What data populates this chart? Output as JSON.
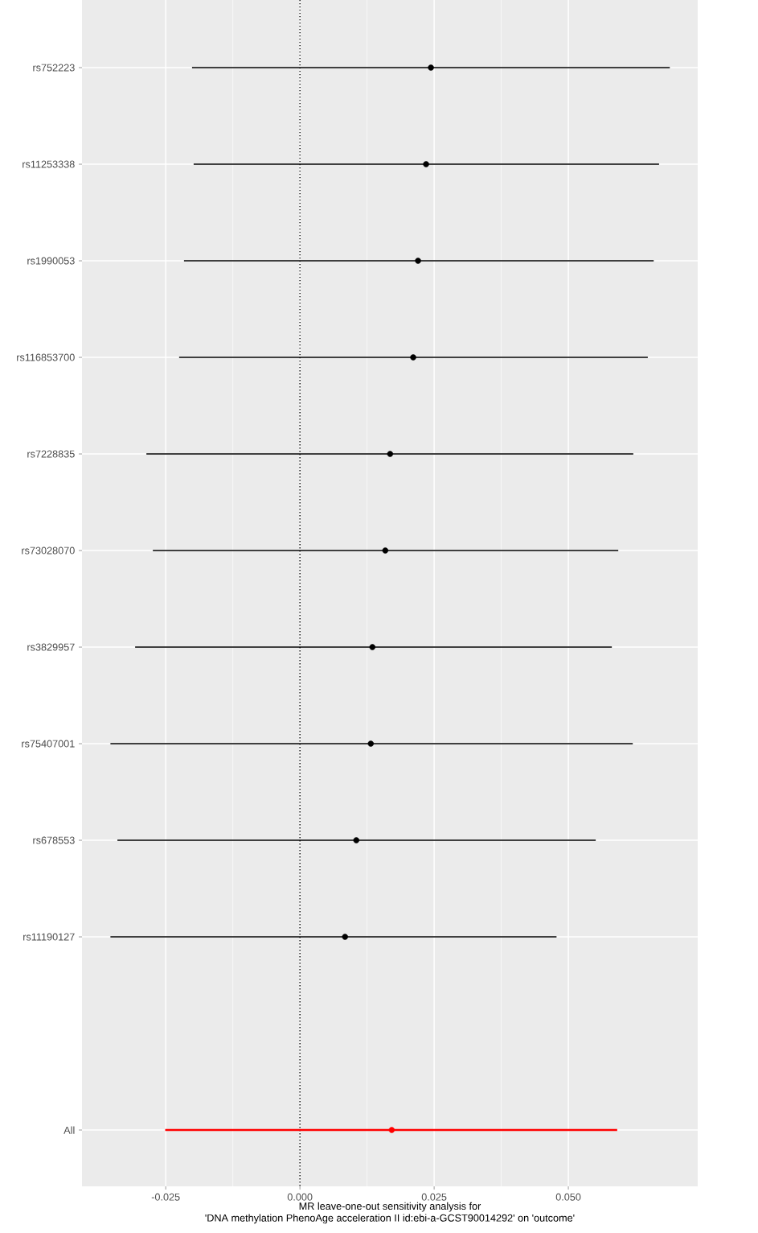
{
  "chart_data": {
    "type": "scatter",
    "orientation": "horizontal",
    "xlabel": "MR leave-one-out sensitivity analysis for\n'DNA methylation PhenoAge acceleration II id:ebi-a-GCST90014292' on 'outcome'",
    "categories": [
      "rs752223",
      "rs11253338",
      "rs1990053",
      "rs116853700",
      "rs7228835",
      "rs73028070",
      "rs3829957",
      "rs75407001",
      "rs678553",
      "rs11190127",
      null,
      "All"
    ],
    "series": [
      {
        "color": "#000000",
        "values": [
          0.0244,
          0.0235,
          0.022,
          0.0211,
          0.0168,
          0.0159,
          0.0135,
          0.0132,
          0.0105,
          0.0084,
          null,
          null
        ],
        "errors": [
          [
            -0.0201,
            0.0689
          ],
          [
            -0.0198,
            0.0669
          ],
          [
            -0.0216,
            0.0659
          ],
          [
            -0.0225,
            0.0648
          ],
          [
            -0.0286,
            0.0621
          ],
          [
            -0.0274,
            0.0593
          ],
          [
            -0.0307,
            0.0581
          ],
          [
            -0.0353,
            0.062
          ],
          [
            -0.034,
            0.0551
          ],
          [
            -0.0353,
            0.0478
          ],
          null,
          null
        ]
      },
      {
        "color": "#ff0000",
        "values": [
          null,
          null,
          null,
          null,
          null,
          null,
          null,
          null,
          null,
          null,
          null,
          0.0171
        ],
        "errors": [
          null,
          null,
          null,
          null,
          null,
          null,
          null,
          null,
          null,
          null,
          null,
          [
            -0.0251,
            0.0591
          ]
        ]
      }
    ],
    "xlim": [
      -0.0406,
      0.0741
    ],
    "xticks": [
      {
        "value": -0.025,
        "label": "-0.025"
      },
      {
        "value": 0,
        "label": "0.000"
      },
      {
        "value": 0.025,
        "label": "0.025"
      },
      {
        "value": 0.05,
        "label": "0.050"
      }
    ],
    "ref_lines": [
      {
        "axis": "x",
        "value": 0,
        "color": "#000000",
        "line_style": "dotted"
      }
    ],
    "grid": true,
    "marker": "circle"
  }
}
